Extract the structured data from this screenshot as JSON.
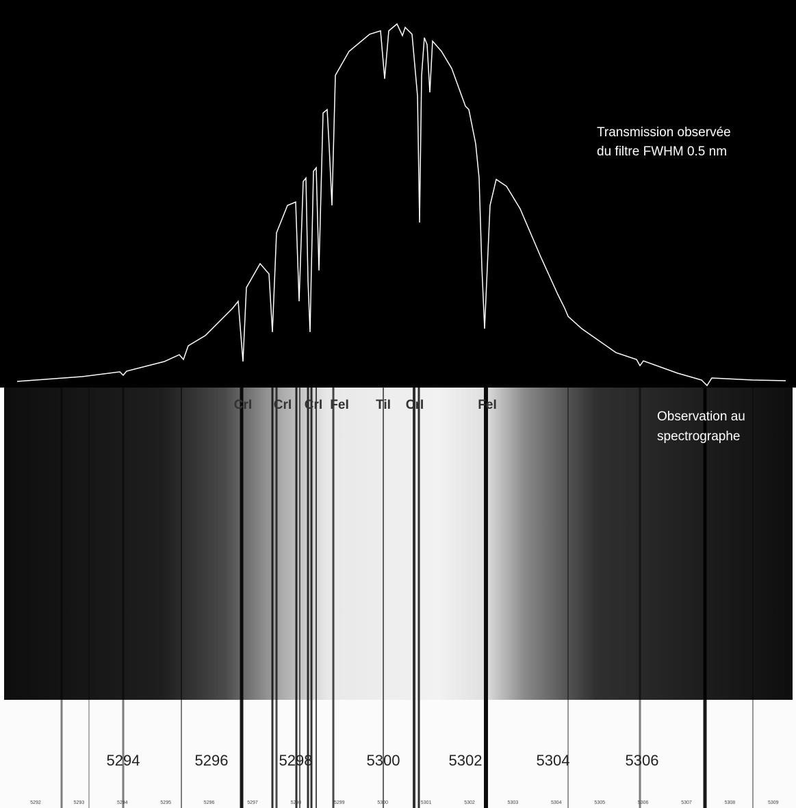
{
  "annotations": {
    "filter": [
      "Transmission observée",
      "du filtre FWHM 0.5 nm"
    ],
    "spectrograph": [
      "Observation au",
      "spectrographe"
    ]
  },
  "line_labels": [
    "CrI",
    "CrI",
    "CrI",
    "FeI",
    "TiI",
    "CrI",
    "FeI"
  ],
  "wavelength_labels": [
    "5294",
    "5296",
    "5298",
    "5300",
    "5302",
    "5304",
    "5306"
  ],
  "scale_labels": [
    "5292",
    "5293",
    "5294",
    "5295",
    "5296",
    "5297",
    "5298",
    "5299",
    "5300",
    "5301",
    "5302",
    "5303",
    "5304",
    "5305",
    "5306",
    "5307",
    "5308",
    "5309"
  ]
}
